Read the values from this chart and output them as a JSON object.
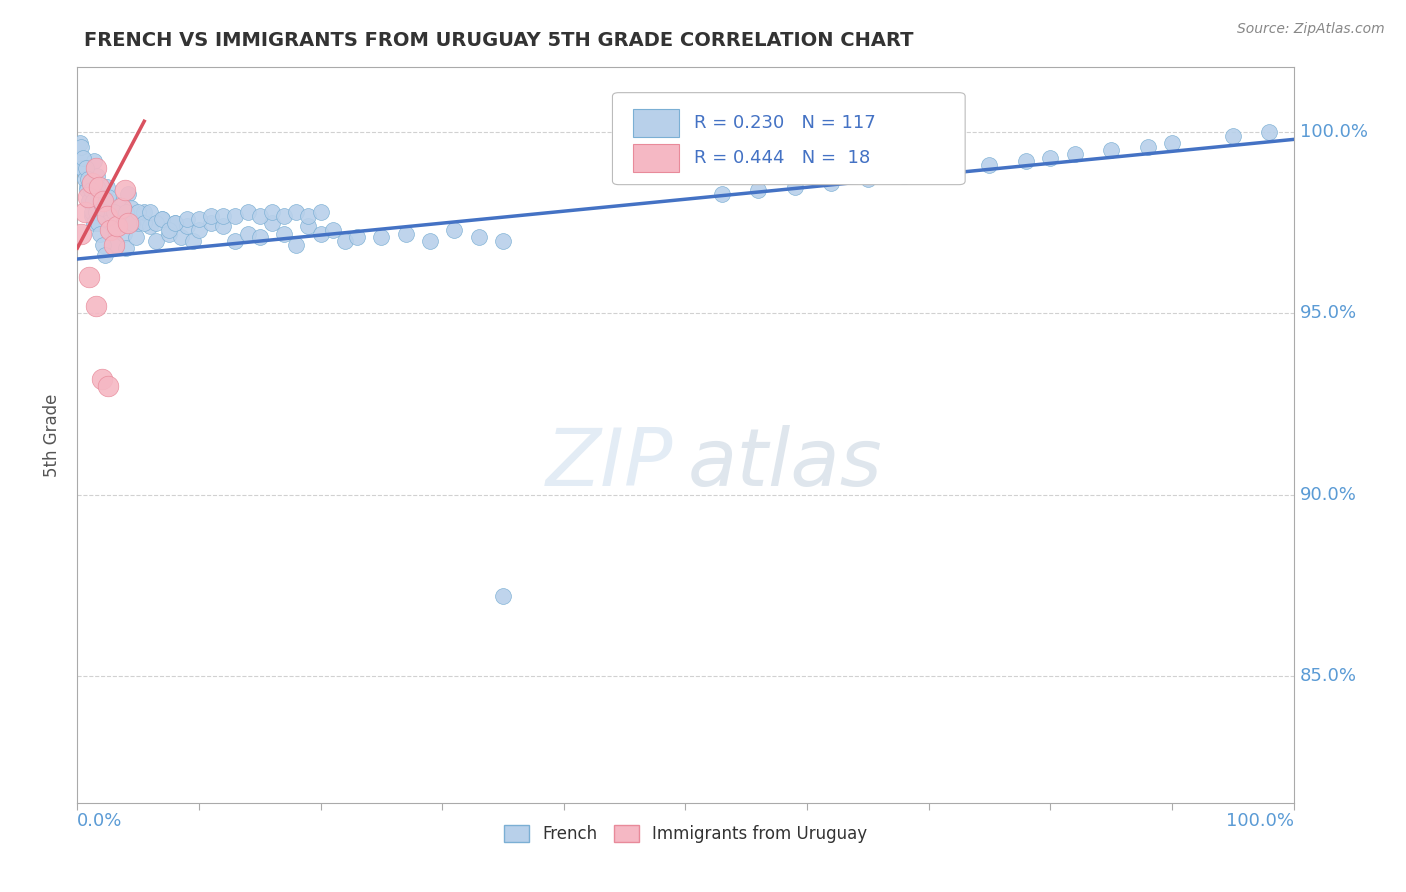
{
  "title": "FRENCH VS IMMIGRANTS FROM URUGUAY 5TH GRADE CORRELATION CHART",
  "source": "Source: ZipAtlas.com",
  "ylabel": "5th Grade",
  "ytick_labels": [
    "100.0%",
    "95.0%",
    "90.0%",
    "85.0%"
  ],
  "ytick_values": [
    1.0,
    0.95,
    0.9,
    0.85
  ],
  "xmin": 0.0,
  "xmax": 1.0,
  "ymin": 0.815,
  "ymax": 1.018,
  "legend_r_blue": "R = 0.230",
  "legend_n_blue": "N = 117",
  "legend_r_pink": "R = 0.444",
  "legend_n_pink": "N =  18",
  "blue_color": "#b8d0ea",
  "blue_edge": "#7bafd4",
  "pink_color": "#f5b8c4",
  "pink_edge": "#e88a9a",
  "trend_blue": "#4472c4",
  "trend_pink": "#d9515f",
  "blue_trend_x0": 0.0,
  "blue_trend_x1": 1.0,
  "blue_trend_y0": 0.965,
  "blue_trend_y1": 0.998,
  "pink_trend_x0": 0.0,
  "pink_trend_x1": 0.055,
  "pink_trend_y0": 0.968,
  "pink_trend_y1": 1.003,
  "blue_scatter_x": [
    0.002,
    0.004,
    0.006,
    0.008,
    0.01,
    0.012,
    0.014,
    0.016,
    0.018,
    0.02,
    0.022,
    0.024,
    0.026,
    0.028,
    0.03,
    0.032,
    0.034,
    0.036,
    0.038,
    0.04,
    0.042,
    0.044,
    0.046,
    0.048,
    0.05,
    0.055,
    0.06,
    0.065,
    0.07,
    0.075,
    0.08,
    0.085,
    0.09,
    0.095,
    0.1,
    0.11,
    0.12,
    0.13,
    0.14,
    0.15,
    0.16,
    0.17,
    0.18,
    0.19,
    0.2,
    0.21,
    0.22,
    0.23,
    0.25,
    0.27,
    0.29,
    0.31,
    0.33,
    0.35,
    0.004,
    0.006,
    0.008,
    0.01,
    0.012,
    0.014,
    0.016,
    0.018,
    0.02,
    0.025,
    0.03,
    0.035,
    0.04,
    0.045,
    0.05,
    0.055,
    0.06,
    0.065,
    0.07,
    0.075,
    0.08,
    0.09,
    0.1,
    0.11,
    0.12,
    0.13,
    0.14,
    0.15,
    0.16,
    0.17,
    0.18,
    0.19,
    0.2,
    0.003,
    0.005,
    0.007,
    0.009,
    0.011,
    0.013,
    0.015,
    0.017,
    0.019,
    0.021,
    0.023,
    0.53,
    0.56,
    0.59,
    0.62,
    0.65,
    0.68,
    0.7,
    0.72,
    0.75,
    0.78,
    0.8,
    0.82,
    0.85,
    0.88,
    0.9,
    0.95,
    0.98,
    0.35
  ],
  "blue_scatter_y": [
    0.997,
    0.993,
    0.989,
    0.985,
    0.981,
    0.977,
    0.992,
    0.988,
    0.984,
    0.98,
    0.976,
    0.985,
    0.981,
    0.977,
    0.973,
    0.969,
    0.98,
    0.976,
    0.972,
    0.968,
    0.983,
    0.979,
    0.975,
    0.971,
    0.975,
    0.978,
    0.974,
    0.97,
    0.976,
    0.972,
    0.975,
    0.971,
    0.974,
    0.97,
    0.973,
    0.975,
    0.974,
    0.97,
    0.972,
    0.971,
    0.975,
    0.972,
    0.969,
    0.974,
    0.972,
    0.973,
    0.97,
    0.971,
    0.971,
    0.972,
    0.97,
    0.973,
    0.971,
    0.97,
    0.99,
    0.987,
    0.984,
    0.981,
    0.978,
    0.975,
    0.985,
    0.982,
    0.979,
    0.982,
    0.978,
    0.975,
    0.978,
    0.975,
    0.978,
    0.975,
    0.978,
    0.975,
    0.976,
    0.973,
    0.975,
    0.976,
    0.976,
    0.977,
    0.977,
    0.977,
    0.978,
    0.977,
    0.978,
    0.977,
    0.978,
    0.977,
    0.978,
    0.996,
    0.993,
    0.99,
    0.987,
    0.984,
    0.981,
    0.978,
    0.975,
    0.972,
    0.969,
    0.966,
    0.983,
    0.984,
    0.985,
    0.986,
    0.987,
    0.988,
    0.989,
    0.99,
    0.991,
    0.992,
    0.993,
    0.994,
    0.995,
    0.996,
    0.997,
    0.999,
    1.0,
    0.872
  ],
  "pink_scatter_x": [
    0.003,
    0.006,
    0.009,
    0.012,
    0.015,
    0.018,
    0.021,
    0.024,
    0.027,
    0.03,
    0.033,
    0.036,
    0.039,
    0.042,
    0.01,
    0.015,
    0.02,
    0.025
  ],
  "pink_scatter_y": [
    0.972,
    0.978,
    0.982,
    0.986,
    0.99,
    0.985,
    0.981,
    0.977,
    0.973,
    0.969,
    0.974,
    0.979,
    0.984,
    0.975,
    0.96,
    0.952,
    0.932,
    0.93
  ],
  "watermark_zip": "ZIP",
  "watermark_atlas": "atlas",
  "background_color": "#ffffff",
  "grid_color": "#cccccc",
  "dot_size_blue": 130,
  "dot_size_pink": 220
}
